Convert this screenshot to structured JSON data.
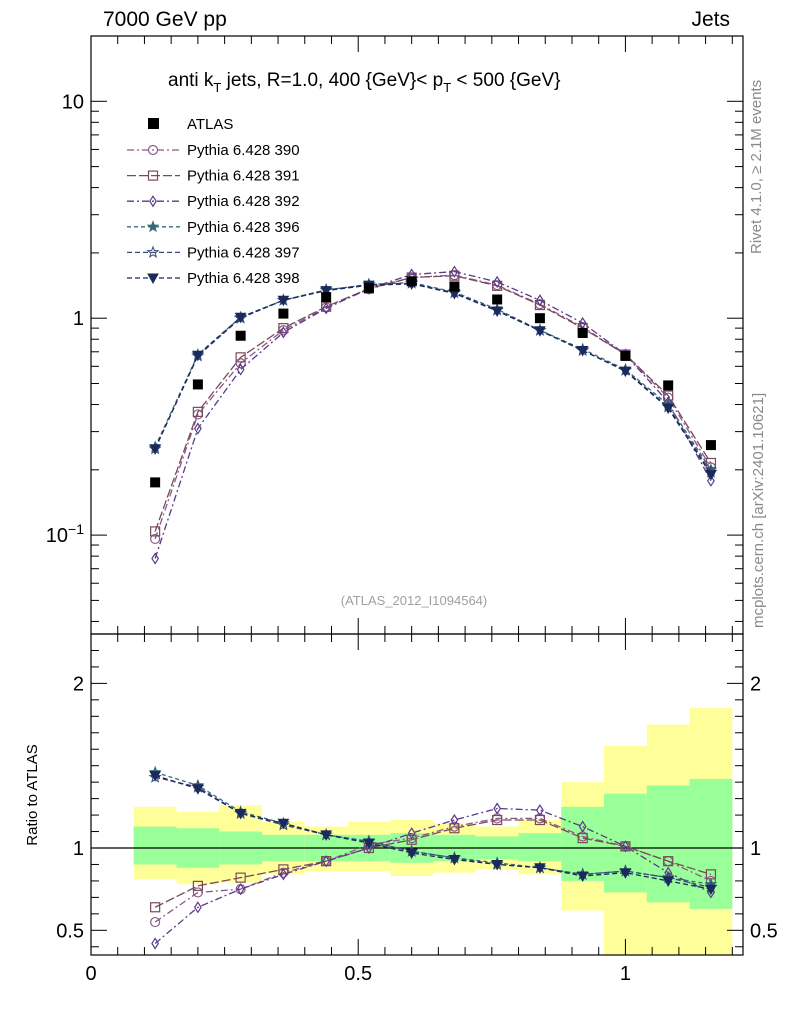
{
  "header": {
    "energy_label": "7000 GeV pp",
    "category_label": "Jets"
  },
  "side": {
    "rivet_label": "Rivet 4.1.0, ≥ 2.1M events",
    "mcplots_label": "mcplots.cern.ch [arXiv:2401.10621]"
  },
  "chart_data": {
    "type": "line",
    "title": "anti k_T jets, R=1.0,  400 {GeV}< p_T < 500 {GeV}",
    "title_parts": {
      "p1": "anti k",
      "sub1": "T",
      "p2": " jets, R=1.0,  400 {GeV}< p",
      "sub2": "T",
      "p3": " < 500 {GeV}"
    },
    "watermark": "(ATLAS_2012_I1094564)",
    "x_range": [
      0,
      1.22
    ],
    "main_ylim": [
      0.035,
      20
    ],
    "main_ylog": true,
    "main_yticks": [
      {
        "value": 10,
        "label": "10"
      },
      {
        "value": 1,
        "label": "1"
      }
    ],
    "main_ytick_exp": {
      "value": 0.1,
      "base": "10",
      "exp": "−1"
    },
    "x_ticks": [
      {
        "value": 0,
        "label": "0"
      },
      {
        "value": 0.5,
        "label": "0.5"
      },
      {
        "value": 1,
        "label": "1"
      }
    ],
    "x": [
      0.12,
      0.2,
      0.28,
      0.36,
      0.44,
      0.52,
      0.6,
      0.68,
      0.76,
      0.84,
      0.92,
      1.0,
      1.08,
      1.16
    ],
    "atlas": {
      "name": "ATLAS",
      "values": [
        0.175,
        0.495,
        0.83,
        1.05,
        1.25,
        1.38,
        1.48,
        1.4,
        1.22,
        1.0,
        0.855,
        0.67,
        0.49,
        0.26
      ]
    },
    "series": [
      {
        "name": "Pythia 6.428 390",
        "color": "#8a5a8a",
        "marker": "circle",
        "dash": "7,3,2,3",
        "values": [
          0.096,
          0.36,
          0.62,
          0.88,
          1.12,
          1.36,
          1.54,
          1.58,
          1.42,
          1.16,
          0.91,
          0.68,
          0.43,
          0.205
        ]
      },
      {
        "name": "Pythia 6.428 391",
        "color": "#7a4a5a",
        "marker": "square",
        "dash": "9,3",
        "values": [
          0.104,
          0.37,
          0.66,
          0.9,
          1.13,
          1.37,
          1.54,
          1.57,
          1.41,
          1.15,
          0.9,
          0.68,
          0.44,
          0.215
        ]
      },
      {
        "name": "Pythia 6.428 392",
        "color": "#5a3a8a",
        "marker": "diamond",
        "dash": "7,3,2,3",
        "values": [
          0.078,
          0.31,
          0.58,
          0.86,
          1.11,
          1.37,
          1.59,
          1.64,
          1.47,
          1.21,
          0.95,
          0.68,
          0.41,
          0.178
        ]
      },
      {
        "name": "Pythia 6.428 396",
        "color": "#3a6a7a",
        "marker": "star",
        "dash": "4,3",
        "values": [
          0.255,
          0.68,
          1.01,
          1.21,
          1.35,
          1.43,
          1.46,
          1.32,
          1.1,
          0.88,
          0.72,
          0.58,
          0.4,
          0.2
        ]
      },
      {
        "name": "Pythia 6.428 397",
        "color": "#3a4a7a",
        "marker": "star-open",
        "dash": "5,3",
        "values": [
          0.25,
          0.67,
          1.0,
          1.21,
          1.35,
          1.43,
          1.45,
          1.31,
          1.09,
          0.88,
          0.71,
          0.575,
          0.39,
          0.195
        ]
      },
      {
        "name": "Pythia 6.428 398",
        "color": "#1a2a5a",
        "marker": "tri-down",
        "dash": "5,3",
        "values": [
          0.25,
          0.675,
          1.01,
          1.21,
          1.34,
          1.42,
          1.44,
          1.3,
          1.08,
          0.875,
          0.71,
          0.57,
          0.385,
          0.19
        ]
      }
    ],
    "ratio": {
      "ylabel": "Ratio to ATLAS",
      "ylim": [
        0.35,
        2.3
      ],
      "yticks": [
        {
          "value": 2,
          "label": "2"
        },
        {
          "value": 1,
          "label": "1"
        },
        {
          "value": 0.5,
          "label": "0.5"
        }
      ],
      "bins": [
        [
          0.08,
          0.16
        ],
        [
          0.16,
          0.24
        ],
        [
          0.24,
          0.32
        ],
        [
          0.32,
          0.4
        ],
        [
          0.4,
          0.48
        ],
        [
          0.48,
          0.56
        ],
        [
          0.56,
          0.64
        ],
        [
          0.64,
          0.72
        ],
        [
          0.72,
          0.8
        ],
        [
          0.8,
          0.88
        ],
        [
          0.88,
          0.96
        ],
        [
          0.96,
          1.04
        ],
        [
          1.04,
          1.12
        ],
        [
          1.12,
          1.2
        ]
      ],
      "green_band": [
        [
          0.9,
          1.13
        ],
        [
          0.88,
          1.12
        ],
        [
          0.9,
          1.1
        ],
        [
          0.92,
          1.08
        ],
        [
          0.92,
          1.08
        ],
        [
          0.92,
          1.08
        ],
        [
          0.91,
          1.09
        ],
        [
          0.92,
          1.08
        ],
        [
          0.93,
          1.07
        ],
        [
          0.92,
          1.09
        ],
        [
          0.8,
          1.25
        ],
        [
          0.73,
          1.33
        ],
        [
          0.67,
          1.38
        ],
        [
          0.63,
          1.42
        ]
      ],
      "yellow_band": [
        [
          0.81,
          1.25
        ],
        [
          0.78,
          1.22
        ],
        [
          0.79,
          1.26
        ],
        [
          0.84,
          1.16
        ],
        [
          0.86,
          1.13
        ],
        [
          0.86,
          1.16
        ],
        [
          0.83,
          1.17
        ],
        [
          0.85,
          1.15
        ],
        [
          0.87,
          1.13
        ],
        [
          0.84,
          1.17
        ],
        [
          0.62,
          1.4
        ],
        [
          0.3,
          1.62
        ],
        [
          0.3,
          1.75
        ],
        [
          0.3,
          1.85
        ]
      ],
      "series_values": [
        [
          0.55,
          0.73,
          0.75,
          0.85,
          0.92,
          1.02,
          1.06,
          1.13,
          1.18,
          1.18,
          1.07,
          1.01,
          0.92,
          0.8
        ],
        [
          0.64,
          0.77,
          0.82,
          0.87,
          0.92,
          1.0,
          1.05,
          1.12,
          1.17,
          1.17,
          1.06,
          1.01,
          0.92,
          0.84
        ],
        [
          0.42,
          0.64,
          0.75,
          0.84,
          0.92,
          1.0,
          1.09,
          1.17,
          1.24,
          1.23,
          1.13,
          1.01,
          0.85,
          0.73
        ],
        [
          1.46,
          1.38,
          1.22,
          1.15,
          1.08,
          1.04,
          0.98,
          0.94,
          0.91,
          0.88,
          0.84,
          0.86,
          0.82,
          0.78
        ],
        [
          1.43,
          1.37,
          1.21,
          1.14,
          1.08,
          1.04,
          0.98,
          0.94,
          0.9,
          0.88,
          0.84,
          0.86,
          0.82,
          0.76
        ],
        [
          1.44,
          1.36,
          1.21,
          1.15,
          1.08,
          1.03,
          0.97,
          0.93,
          0.9,
          0.88,
          0.83,
          0.85,
          0.8,
          0.75
        ]
      ]
    }
  }
}
